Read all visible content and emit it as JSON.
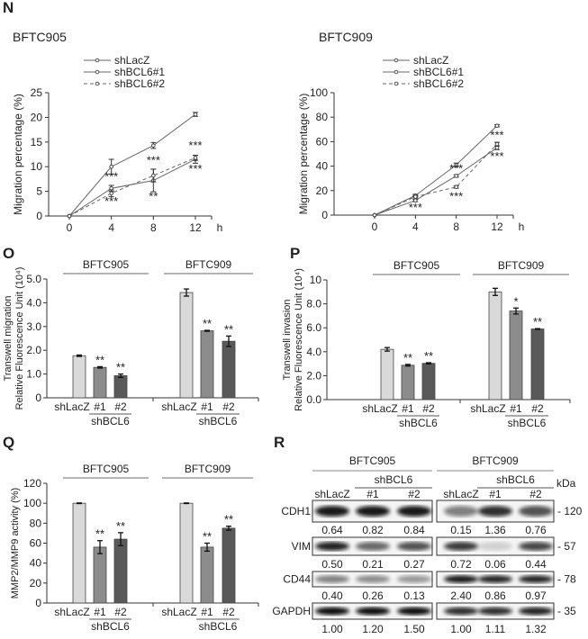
{
  "panel_labels": [
    "N",
    "O",
    "P",
    "Q",
    "R"
  ],
  "chart_data": [
    {
      "panel": "N",
      "type": "line",
      "title": "BFTC905",
      "xlabel": "h",
      "ylabel": "Migration percentage (%)",
      "x": [
        0,
        4,
        8,
        12
      ],
      "xlim": [
        0,
        12
      ],
      "ylim": [
        0,
        25
      ],
      "yticks": [
        0,
        5,
        10,
        15,
        20,
        25
      ],
      "series": [
        {
          "name": "shLacZ",
          "values": [
            0,
            10.0,
            14.3,
            20.6
          ],
          "errors": [
            0,
            1.5,
            0.6,
            0.4
          ],
          "style": "solid",
          "marker": "diamond"
        },
        {
          "name": "shBCL6#1",
          "values": [
            0,
            5.6,
            7.2,
            11.5
          ],
          "errors": [
            0,
            0.6,
            2.3,
            0.8
          ],
          "style": "solid",
          "marker": "square"
        },
        {
          "name": "shBCL6#2",
          "values": [
            0,
            4.6,
            8.2,
            11.8
          ],
          "errors": [
            0,
            0.7,
            1.3,
            0.5
          ],
          "style": "dashed",
          "marker": "triangle"
        }
      ],
      "annotations": [
        {
          "x": 4,
          "y": 7.2,
          "text": "***"
        },
        {
          "x": 4,
          "y": 2.2,
          "text": "***"
        },
        {
          "x": 8,
          "y": 10.5,
          "text": "***"
        },
        {
          "x": 8,
          "y": 3.2,
          "text": "**"
        },
        {
          "x": 12,
          "y": 13.5,
          "text": "***"
        },
        {
          "x": 12,
          "y": 8.8,
          "text": "***"
        }
      ]
    },
    {
      "panel": "N",
      "type": "line",
      "title": "BFTC909",
      "xlabel": "h",
      "ylabel": "Migration percentage (%)",
      "x": [
        0,
        4,
        8,
        12
      ],
      "xlim": [
        0,
        12
      ],
      "ylim": [
        0,
        100
      ],
      "yticks": [
        0,
        20,
        40,
        60,
        80,
        100
      ],
      "series": [
        {
          "name": "shLacZ",
          "values": [
            0,
            16,
            41,
            73
          ],
          "errors": [
            0,
            1,
            1.5,
            0.8
          ],
          "style": "solid",
          "marker": "diamond"
        },
        {
          "name": "shBCL6#1",
          "values": [
            0,
            12,
            32,
            55
          ],
          "errors": [
            0,
            1,
            1,
            1.5
          ],
          "style": "solid",
          "marker": "square"
        },
        {
          "name": "shBCL6#2",
          "values": [
            0,
            15,
            23,
            58
          ],
          "errors": [
            0,
            1,
            1,
            1.5
          ],
          "style": "dashed",
          "marker": "triangle"
        }
      ],
      "annotations": [
        {
          "x": 4,
          "y": 3,
          "text": "***"
        },
        {
          "x": 8,
          "y": 35,
          "text": "***"
        },
        {
          "x": 8,
          "y": 12,
          "text": "***"
        },
        {
          "x": 12,
          "y": 62,
          "text": "***"
        },
        {
          "x": 12,
          "y": 45,
          "text": "***"
        }
      ]
    },
    {
      "panel": "O",
      "type": "bar",
      "ylabel": [
        "Transwell migration",
        "Relative Fluorescence Unit (10⁴)"
      ],
      "ylim": [
        0,
        5
      ],
      "ytick_labels": [
        "0",
        "1.0",
        "2.0",
        "3.0",
        "4.0",
        "5.0"
      ],
      "groups": [
        {
          "name": "BFTC905",
          "categories": [
            "shLacZ",
            "#1",
            "#2"
          ],
          "values": [
            1.77,
            1.28,
            0.93
          ],
          "errors": [
            0.03,
            0.03,
            0.07
          ],
          "significance": [
            "",
            "**",
            "**"
          ]
        },
        {
          "name": "BFTC909",
          "categories": [
            "shLacZ",
            "#1",
            "#2"
          ],
          "values": [
            4.43,
            2.82,
            2.38
          ],
          "errors": [
            0.15,
            0.02,
            0.22
          ],
          "significance": [
            "",
            "**",
            "**"
          ]
        }
      ],
      "subgroup_label": "shBCL6"
    },
    {
      "panel": "P",
      "type": "bar",
      "ylabel": [
        "Transwell invasion",
        "Relative Fluorescence Unit (10⁴)"
      ],
      "ylim": [
        0,
        10
      ],
      "ytick_labels": [
        "0.0",
        "2.0",
        "4.0",
        "6.0",
        "8.0",
        "10"
      ],
      "groups": [
        {
          "name": "BFTC905",
          "categories": [
            "shLacZ",
            "#1",
            "#2"
          ],
          "values": [
            4.2,
            2.87,
            3.03
          ],
          "errors": [
            0.15,
            0.07,
            0.05
          ],
          "significance": [
            "",
            "**",
            "**"
          ]
        },
        {
          "name": "BFTC909",
          "categories": [
            "shLacZ",
            "#1",
            "#2"
          ],
          "values": [
            9.0,
            7.4,
            5.9
          ],
          "errors": [
            0.3,
            0.25,
            0.03
          ],
          "significance": [
            "",
            "*",
            "**"
          ]
        }
      ],
      "subgroup_label": "shBCL6"
    },
    {
      "panel": "Q",
      "type": "bar",
      "ylabel": [
        "MMP2/MMP9 activity (%)"
      ],
      "ylim": [
        0,
        120
      ],
      "ytick_labels": [
        "0",
        "20",
        "40",
        "60",
        "80",
        "100",
        "120"
      ],
      "groups": [
        {
          "name": "BFTC905",
          "categories": [
            "shLacZ",
            "#1",
            "#2"
          ],
          "values": [
            100,
            56,
            64
          ],
          "errors": [
            0.3,
            6.5,
            6.5
          ],
          "significance": [
            "",
            "**",
            "**"
          ]
        },
        {
          "name": "BFTC909",
          "categories": [
            "shLacZ",
            "#1",
            "#2"
          ],
          "values": [
            100,
            56,
            75
          ],
          "errors": [
            0.3,
            4,
            2
          ],
          "significance": [
            "",
            "**",
            "**"
          ]
        }
      ],
      "subgroup_label": "shBCL6"
    },
    {
      "panel": "R",
      "type": "table",
      "cell_lines": [
        "BFTC905",
        "BFTC909"
      ],
      "lanes": [
        "shLacZ",
        "#1",
        "#2"
      ],
      "subgroup_label": "shBCL6",
      "unit": "kDa",
      "rows": [
        {
          "protein": "CDH1",
          "kda": "120",
          "values": [
            [
              "0.64",
              "0.82",
              "0.84"
            ],
            [
              "0.15",
              "1.36",
              "0.76"
            ]
          ]
        },
        {
          "protein": "VIM",
          "kda": "57",
          "values": [
            [
              "0.50",
              "0.21",
              "0.27"
            ],
            [
              "0.72",
              "0.06",
              "0.44"
            ]
          ]
        },
        {
          "protein": "CD44",
          "kda": "78",
          "values": [
            [
              "0.40",
              "0.26",
              "0.13"
            ],
            [
              "2.40",
              "0.86",
              "0.97"
            ]
          ]
        },
        {
          "protein": "GAPDH",
          "kda": "35",
          "values": [
            [
              "1.00",
              "1.20",
              "1.50"
            ],
            [
              "1.00",
              "1.11",
              "1.32"
            ]
          ]
        }
      ]
    }
  ],
  "colors": {
    "axis": "#333333",
    "bar_shLacZ": "#d9d9d9",
    "bar_sh1": "#8c8c8c",
    "bar_sh2": "#595959",
    "header_line": "#888888"
  }
}
